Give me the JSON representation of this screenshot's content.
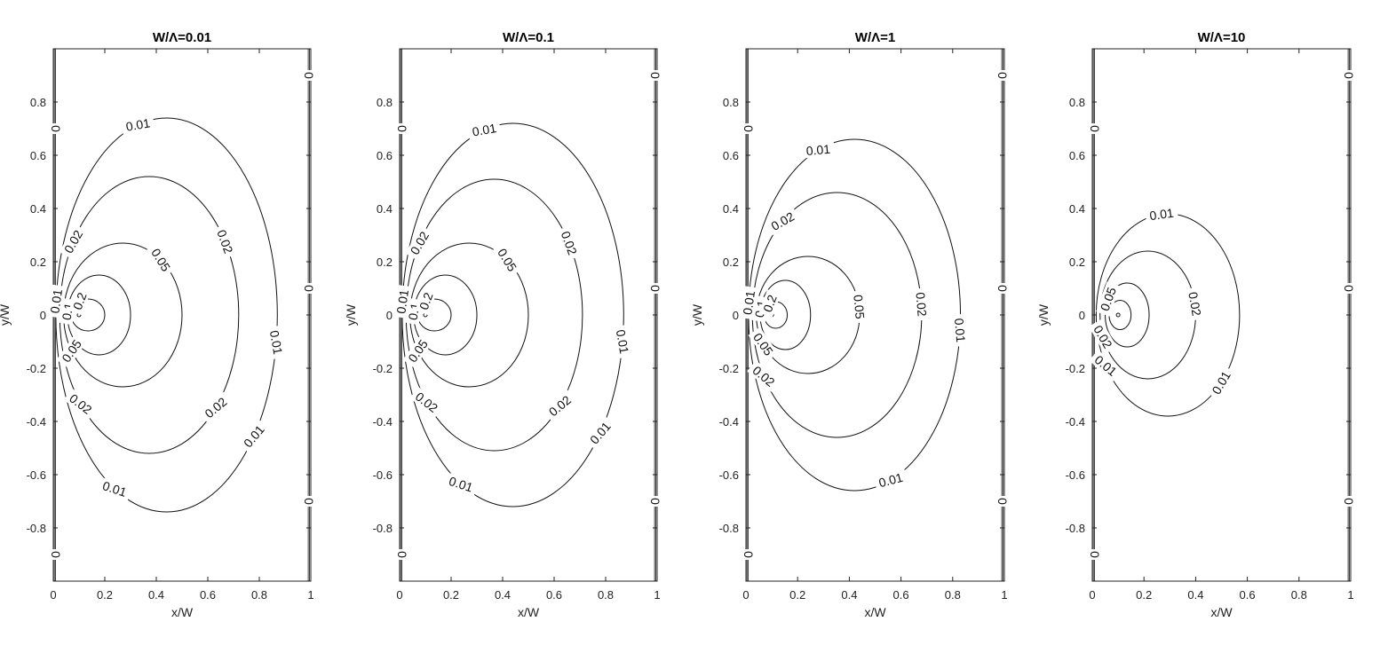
{
  "chart_data": [
    {
      "type": "contour",
      "title": "W/Λ=0.01",
      "xlabel": "x/W",
      "ylabel": "y/W",
      "xlim": [
        0,
        1
      ],
      "ylim": [
        -1,
        1
      ],
      "xticks": [
        "0",
        "0.2",
        "0.4",
        "0.6",
        "0.8",
        "1"
      ],
      "yticks": [
        "-0.8",
        "-0.6",
        "-0.4",
        "-0.2",
        "0",
        "0.2",
        "0.4",
        "0.6",
        "0.8"
      ],
      "source": {
        "x": 0.1,
        "y": 0
      },
      "contours": [
        {
          "level": "0.01",
          "x_min": 0.01,
          "x_max": 0.87,
          "y_max": 0.74
        },
        {
          "level": "0.02",
          "x_min": 0.025,
          "x_max": 0.72,
          "y_max": 0.52
        },
        {
          "level": "0.05",
          "x_min": 0.04,
          "x_max": 0.5,
          "y_max": 0.27
        },
        {
          "level": "0.1",
          "x_min": 0.055,
          "x_max": 0.3,
          "y_max": 0.15
        },
        {
          "level": "0.2",
          "x_min": 0.07,
          "x_max": 0.2,
          "y_max": 0.06
        }
      ],
      "contour_labels": [
        "0.01",
        "0.01",
        "0.01",
        "0.01",
        "0.02",
        "0.02",
        "0.02",
        "0.02",
        "0.05",
        "0.05",
        "0.1",
        "0.2",
        "0.01"
      ],
      "boundary_labels": [
        "0",
        "0",
        "0",
        "0",
        "0"
      ]
    },
    {
      "type": "contour",
      "title": "W/Λ=0.1",
      "xlabel": "x/W",
      "ylabel": "y/W",
      "xlim": [
        0,
        1
      ],
      "ylim": [
        -1,
        1
      ],
      "xticks": [
        "0",
        "0.2",
        "0.4",
        "0.6",
        "0.8",
        "1"
      ],
      "yticks": [
        "-0.8",
        "-0.6",
        "-0.4",
        "-0.2",
        "0",
        "0.2",
        "0.4",
        "0.6",
        "0.8"
      ],
      "source": {
        "x": 0.1,
        "y": 0
      },
      "contours": [
        {
          "level": "0.01",
          "x_min": 0.01,
          "x_max": 0.87,
          "y_max": 0.72
        },
        {
          "level": "0.02",
          "x_min": 0.025,
          "x_max": 0.71,
          "y_max": 0.51
        },
        {
          "level": "0.05",
          "x_min": 0.04,
          "x_max": 0.5,
          "y_max": 0.27
        },
        {
          "level": "0.1",
          "x_min": 0.055,
          "x_max": 0.3,
          "y_max": 0.15
        },
        {
          "level": "0.2",
          "x_min": 0.07,
          "x_max": 0.2,
          "y_max": 0.06
        }
      ],
      "contour_labels": [
        "0.01",
        "0.01",
        "0.01",
        "0.01",
        "0.02",
        "0.02",
        "0.02",
        "0.02",
        "0.05",
        "0.05",
        "0.1",
        "0.2",
        "0.01"
      ],
      "boundary_labels": [
        "0",
        "0",
        "0",
        "0",
        "0"
      ]
    },
    {
      "type": "contour",
      "title": "W/Λ=1",
      "xlabel": "x/W",
      "ylabel": "y/W",
      "xlim": [
        0,
        1
      ],
      "ylim": [
        -1,
        1
      ],
      "xticks": [
        "0",
        "0.2",
        "0.4",
        "0.6",
        "0.8",
        "1"
      ],
      "yticks": [
        "-0.8",
        "-0.6",
        "-0.4",
        "-0.2",
        "0",
        "0.2",
        "0.4",
        "0.6",
        "0.8"
      ],
      "source": {
        "x": 0.1,
        "y": 0
      },
      "contours": [
        {
          "level": "0.01",
          "x_min": 0.01,
          "x_max": 0.83,
          "y_max": 0.66
        },
        {
          "level": "0.02",
          "x_min": 0.025,
          "x_max": 0.68,
          "y_max": 0.46
        },
        {
          "level": "0.05",
          "x_min": 0.04,
          "x_max": 0.44,
          "y_max": 0.22
        },
        {
          "level": "0.1",
          "x_min": 0.055,
          "x_max": 0.25,
          "y_max": 0.13
        },
        {
          "level": "0.2",
          "x_min": 0.07,
          "x_max": 0.16,
          "y_max": 0.05
        }
      ],
      "contour_labels": [
        "0.01",
        "0.01",
        "0.01",
        "0.02",
        "0.02",
        "0.02",
        "0.05",
        "0.05",
        "0.1",
        "0.2",
        "0.01"
      ],
      "boundary_labels": [
        "0",
        "0",
        "0",
        "0",
        "0"
      ]
    },
    {
      "type": "contour",
      "title": "W/Λ=10",
      "xlabel": "x/W",
      "ylabel": "y/W",
      "xlim": [
        0,
        1
      ],
      "ylim": [
        -1,
        1
      ],
      "xticks": [
        "0",
        "0.2",
        "0.4",
        "0.6",
        "0.8",
        "1"
      ],
      "yticks": [
        "-0.8",
        "-0.6",
        "-0.4",
        "-0.2",
        "0",
        "0.2",
        "0.4",
        "0.6",
        "0.8"
      ],
      "source": {
        "x": 0.1,
        "y": 0
      },
      "contours": [
        {
          "level": "0.01",
          "x_min": 0.015,
          "x_max": 0.57,
          "y_max": 0.38
        },
        {
          "level": "0.02",
          "x_min": 0.03,
          "x_max": 0.4,
          "y_max": 0.24
        },
        {
          "level": "0.05",
          "x_min": 0.05,
          "x_max": 0.22,
          "y_max": 0.12
        },
        {
          "level": "0.1",
          "x_min": 0.065,
          "x_max": 0.15,
          "y_max": 0.055
        }
      ],
      "contour_labels": [
        "0.01",
        "0.01",
        "0.01",
        "0.02",
        "0.02",
        "0.05"
      ],
      "boundary_labels": [
        "0",
        "0",
        "0",
        "0",
        "0"
      ]
    }
  ]
}
